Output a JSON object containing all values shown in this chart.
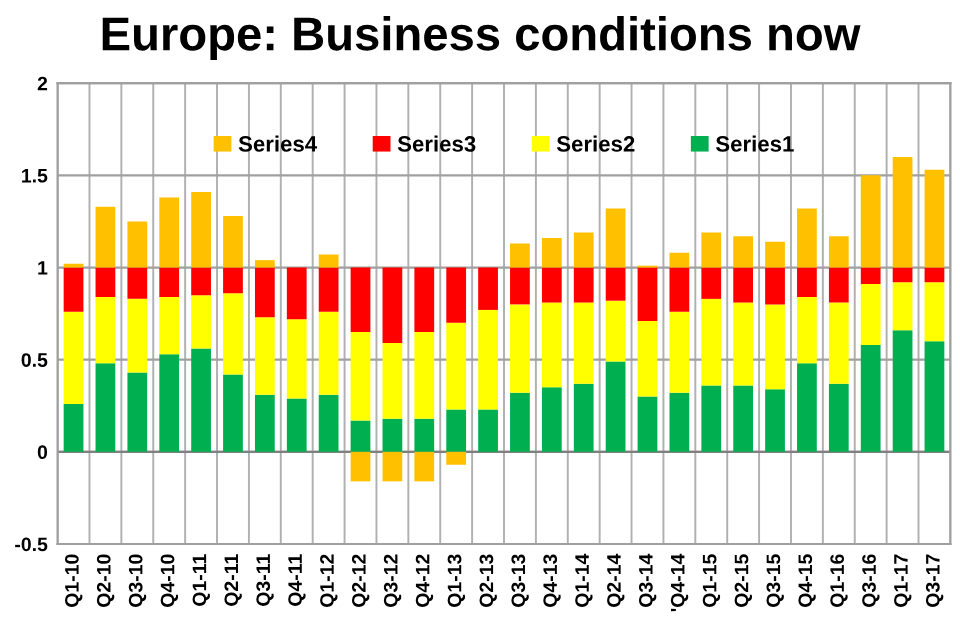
{
  "chart_data": {
    "type": "bar",
    "title": "Europe: Business conditions now",
    "stacked": true,
    "categories": [
      "Q1-10",
      "Q2-10",
      "Q3-10",
      "Q4-10",
      "Q1-11",
      "Q2-11",
      "Q3-11",
      "Q4-11",
      "Q1-12",
      "Q2-12",
      "Q3-12",
      "Q4-12",
      "Q1-13",
      "Q2-13",
      "Q3-13",
      "Q4-13",
      "Q1-14",
      "Q2-14",
      "Q3-14",
      "'Q4-14",
      "Q1-15",
      "Q2-15",
      "Q3-15",
      "Q4-15",
      "Q1-16",
      "Q3-16",
      "Q1-17",
      "Q3-17"
    ],
    "series": [
      {
        "name": "Series1",
        "color": "#00b050",
        "values": [
          0.26,
          0.48,
          0.43,
          0.53,
          0.56,
          0.42,
          0.31,
          0.29,
          0.31,
          0.17,
          0.18,
          0.18,
          0.23,
          0.23,
          0.32,
          0.35,
          0.37,
          0.49,
          0.3,
          0.32,
          0.36,
          0.36,
          0.34,
          0.48,
          0.37,
          0.58,
          0.66,
          0.6
        ]
      },
      {
        "name": "Series2",
        "color": "#ffff00",
        "values": [
          0.5,
          0.36,
          0.4,
          0.31,
          0.29,
          0.44,
          0.42,
          0.43,
          0.45,
          0.48,
          0.41,
          0.47,
          0.47,
          0.54,
          0.48,
          0.46,
          0.44,
          0.33,
          0.41,
          0.44,
          0.47,
          0.45,
          0.46,
          0.36,
          0.44,
          0.33,
          0.26,
          0.32
        ]
      },
      {
        "name": "Series3",
        "color": "#ff0000",
        "values": [
          0.24,
          0.16,
          0.17,
          0.16,
          0.15,
          0.14,
          0.27,
          0.28,
          0.24,
          0.35,
          0.41,
          0.35,
          0.3,
          0.23,
          0.2,
          0.19,
          0.19,
          0.18,
          0.29,
          0.24,
          0.17,
          0.19,
          0.2,
          0.16,
          0.19,
          0.09,
          0.08,
          0.08
        ]
      },
      {
        "name": "Series4",
        "color": "#ffc000",
        "values": [
          0.02,
          0.33,
          0.25,
          0.38,
          0.41,
          0.28,
          0.04,
          0,
          0.07,
          -0.16,
          -0.16,
          -0.16,
          -0.07,
          0,
          0.13,
          0.16,
          0.19,
          0.32,
          0.01,
          0.08,
          0.19,
          0.17,
          0.14,
          0.32,
          0.17,
          0.5,
          0.6,
          0.53
        ]
      }
    ],
    "ylim": [
      -0.5,
      2
    ],
    "yticks": [
      -0.5,
      0,
      0.5,
      1,
      1.5,
      2
    ],
    "grid": true,
    "legend": "top"
  }
}
